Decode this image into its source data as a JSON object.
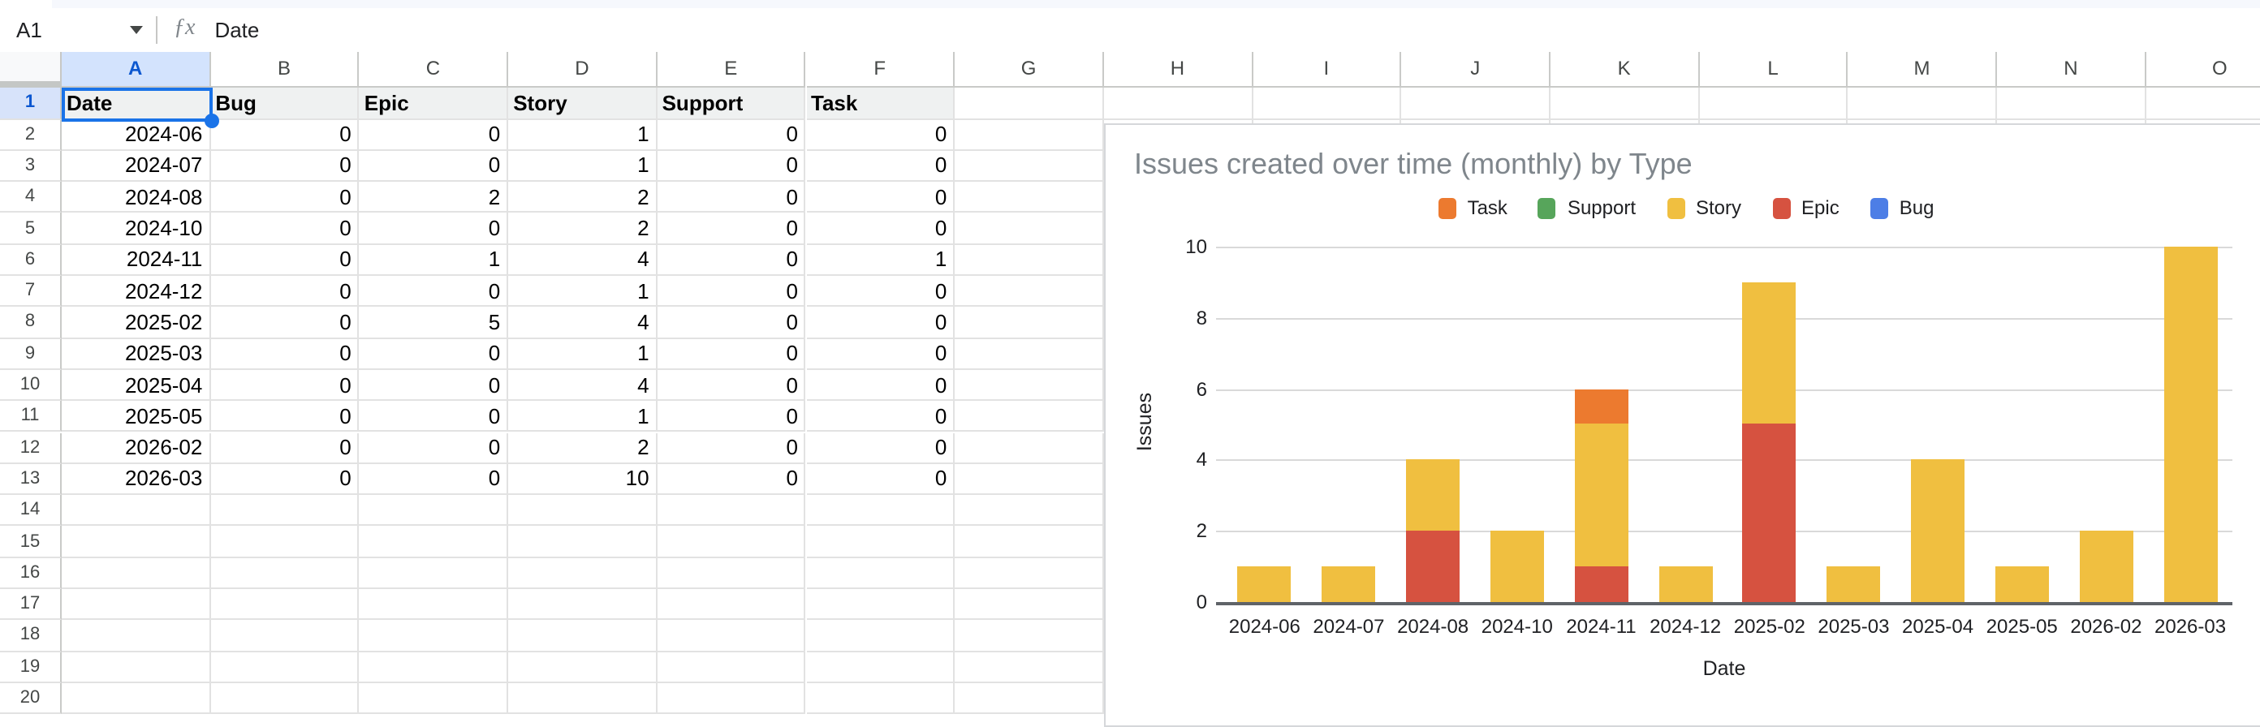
{
  "app": {
    "name_box": "A1",
    "fx_label": "ƒx",
    "formula_value": "Date"
  },
  "colors": {
    "accent_blue": "#1a73e8",
    "selected_header_fill": "#d3e3fd",
    "header_row_fill": "#eff1f1",
    "chart_title_gray": "#7f868c"
  },
  "sheet": {
    "columns": [
      "A",
      "B",
      "C",
      "D",
      "E",
      "F",
      "G",
      "H",
      "I",
      "J",
      "K",
      "L",
      "M",
      "N",
      "O"
    ],
    "visible_rows": 20,
    "selected_cell": "A1",
    "selected_column": "A",
    "selected_row": 1,
    "header_row": [
      "Date",
      "Bug",
      "Epic",
      "Story",
      "Support",
      "Task"
    ],
    "data_rows": [
      [
        "2024-06",
        0,
        0,
        1,
        0,
        0
      ],
      [
        "2024-07",
        0,
        0,
        1,
        0,
        0
      ],
      [
        "2024-08",
        0,
        2,
        2,
        0,
        0
      ],
      [
        "2024-10",
        0,
        0,
        2,
        0,
        0
      ],
      [
        "2024-11",
        0,
        1,
        4,
        0,
        1
      ],
      [
        "2024-12",
        0,
        0,
        1,
        0,
        0
      ],
      [
        "2025-02",
        0,
        5,
        4,
        0,
        0
      ],
      [
        "2025-03",
        0,
        0,
        1,
        0,
        0
      ],
      [
        "2025-04",
        0,
        0,
        4,
        0,
        0
      ],
      [
        "2025-05",
        0,
        0,
        1,
        0,
        0
      ],
      [
        "2026-02",
        0,
        0,
        2,
        0,
        0
      ],
      [
        "2026-03",
        0,
        0,
        10,
        0,
        0
      ]
    ]
  },
  "chart_data": {
    "type": "bar",
    "stacked": true,
    "title": "Issues created over time (monthly) by Type",
    "xlabel": "Date",
    "ylabel": "Issues",
    "ylim": [
      0,
      10
    ],
    "yticks": [
      0,
      2,
      4,
      6,
      8,
      10
    ],
    "grid": true,
    "legend_position": "top",
    "categories": [
      "2024-06",
      "2024-07",
      "2024-08",
      "2024-10",
      "2024-11",
      "2024-12",
      "2025-02",
      "2025-03",
      "2025-04",
      "2025-05",
      "2026-02",
      "2026-03"
    ],
    "series": [
      {
        "name": "Task",
        "color": "#EC7A2F",
        "values": [
          0,
          0,
          0,
          0,
          1,
          0,
          0,
          0,
          0,
          0,
          0,
          0
        ]
      },
      {
        "name": "Support",
        "color": "#57A55B",
        "values": [
          0,
          0,
          0,
          0,
          0,
          0,
          0,
          0,
          0,
          0,
          0,
          0
        ]
      },
      {
        "name": "Story",
        "color": "#F0BF40",
        "values": [
          1,
          1,
          2,
          2,
          4,
          1,
          4,
          1,
          4,
          1,
          2,
          10
        ]
      },
      {
        "name": "Epic",
        "color": "#D65240",
        "values": [
          0,
          0,
          2,
          0,
          1,
          0,
          5,
          0,
          0,
          0,
          0,
          0
        ]
      },
      {
        "name": "Bug",
        "color": "#4D7EE6",
        "values": [
          0,
          0,
          0,
          0,
          0,
          0,
          0,
          0,
          0,
          0,
          0,
          0
        ]
      }
    ],
    "stack_order_bottom_to_top": [
      "Bug",
      "Epic",
      "Story",
      "Support",
      "Task"
    ]
  }
}
